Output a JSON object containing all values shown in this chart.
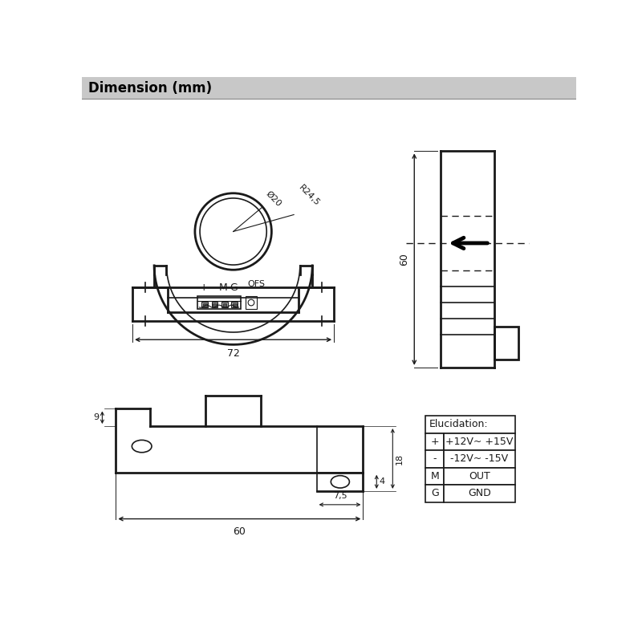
{
  "title": "Dimension (mm)",
  "title_bg": "#c8c8c8",
  "bg_color": "#ffffff",
  "line_color": "#1a1a1a",
  "table": {
    "header": "Elucidation:",
    "rows": [
      [
        "+",
        "+12V~ +15V"
      ],
      [
        "-",
        "-12V~ -15V"
      ],
      [
        "M",
        "OUT"
      ],
      [
        "G",
        "GND"
      ]
    ]
  },
  "dim_72": "72",
  "dim_60_side": "60",
  "dim_60_bottom": "60",
  "dim_9": "9",
  "dim_4": "4",
  "dim_18": "18",
  "dim_75": "7,5",
  "dim_r245": "R24,5",
  "dim_dia20": "Ø20"
}
